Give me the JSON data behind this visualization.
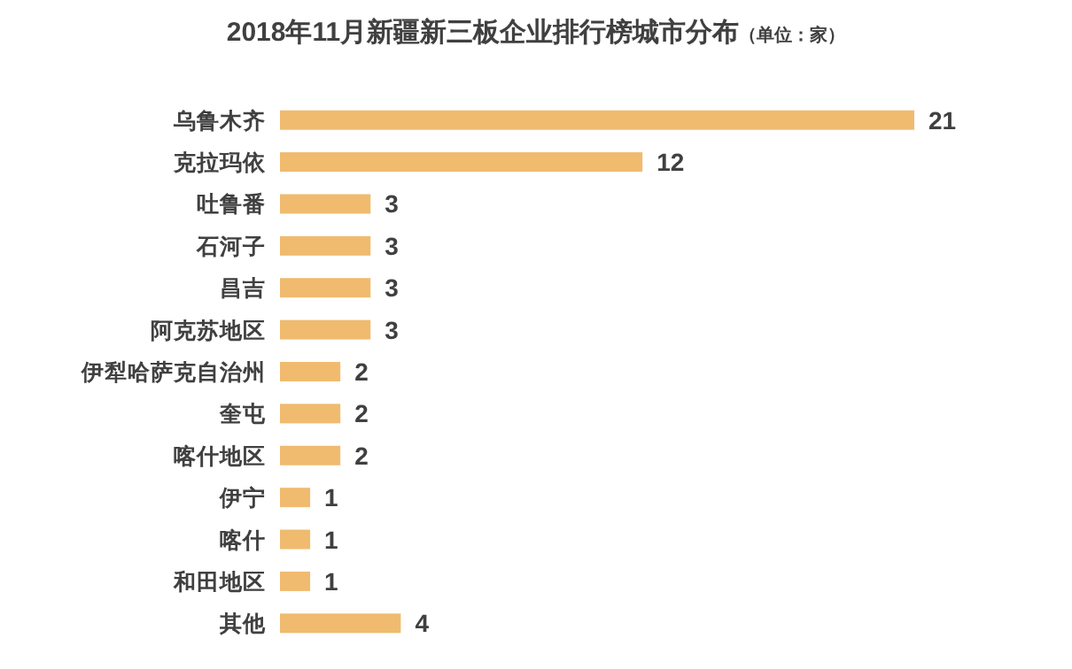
{
  "chart_data": {
    "type": "bar",
    "orientation": "horizontal",
    "title": "2018年11月新疆新三板企业排行榜城市分布",
    "subtitle": "（单位：家）",
    "categories": [
      "乌鲁木齐",
      "克拉玛依",
      "吐鲁番",
      "石河子",
      "昌吉",
      "阿克苏地区",
      "伊犁哈萨克自治州",
      "奎屯",
      "喀什地区",
      "伊宁",
      "喀什",
      "和田地区",
      "其他"
    ],
    "values": [
      21,
      12,
      3,
      3,
      3,
      3,
      2,
      2,
      2,
      1,
      1,
      1,
      4
    ],
    "color": "#f0bb6f",
    "data_labels": true
  }
}
